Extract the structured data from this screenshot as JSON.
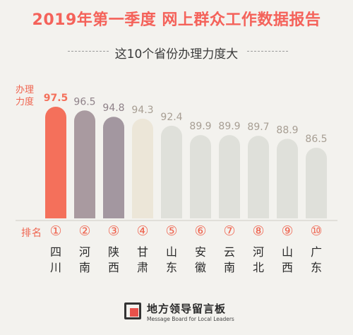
{
  "header": {
    "title": "2019年第一季度  网上群众工作数据报告",
    "subtitle": "这10个省份办理力度大"
  },
  "axis": {
    "y_label": "办理力度",
    "rank_label": "排名"
  },
  "colors": {
    "title": "#f4625a",
    "bar_top": "#f4705b",
    "bar_2": "#a99aa0",
    "bar_3": "#a397a0",
    "bar_4": "#ece6d8",
    "bar_rest": "#dfe0da",
    "rank": "#ef6550"
  },
  "logo": {
    "name": "地方领导留言板",
    "tagline": "Message Board for Local Leaders"
  },
  "chart_data": {
    "type": "bar",
    "categories": [
      "四川",
      "河南",
      "陕西",
      "甘肃",
      "山东",
      "安徽",
      "云南",
      "河北",
      "山西",
      "广东"
    ],
    "values": [
      97.5,
      96.5,
      94.8,
      94.3,
      92.4,
      89.9,
      89.9,
      89.7,
      88.9,
      86.5
    ],
    "ranks": [
      "①",
      "②",
      "③",
      "④",
      "⑤",
      "⑥",
      "⑦",
      "⑧",
      "⑨",
      "⑩"
    ],
    "title": "这10个省份办理力度大",
    "ylabel": "办理力度",
    "grid": false,
    "legend": "none"
  }
}
